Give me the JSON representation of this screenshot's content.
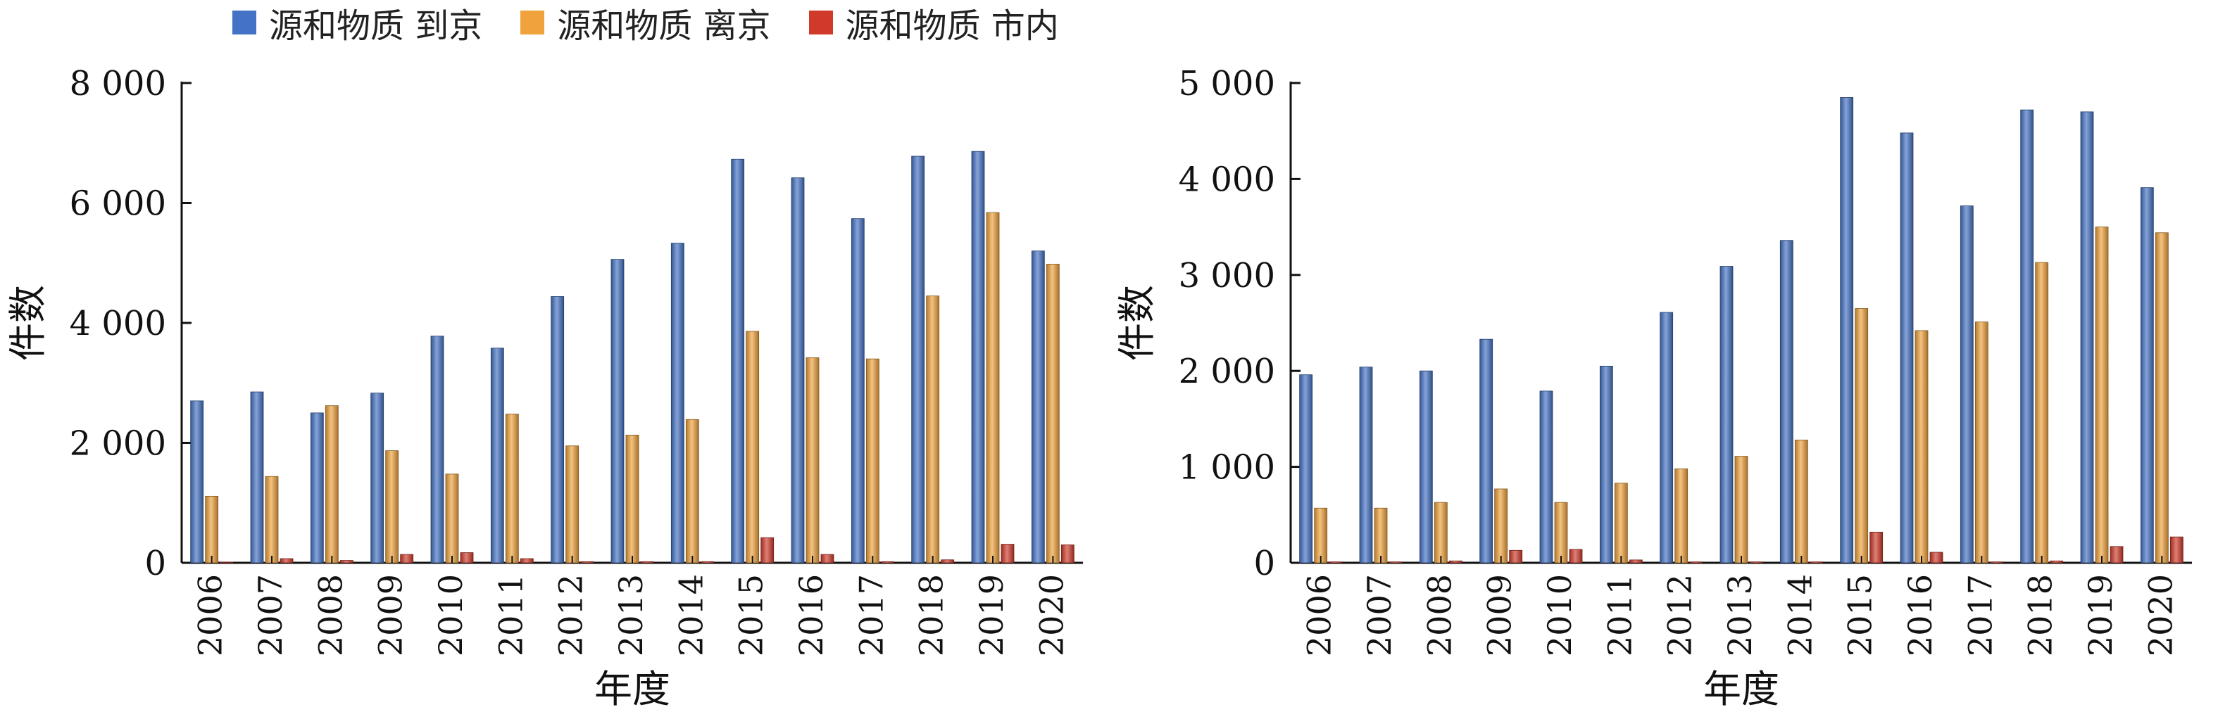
{
  "legend": [
    {
      "label": "源和物质 到京",
      "color": "#4472c4"
    },
    {
      "label": "源和物质 离京",
      "color": "#f0a23c"
    },
    {
      "label": "源和物质 市内",
      "color": "#d03a2a"
    }
  ],
  "chart_data": [
    {
      "type": "bar",
      "xlabel": "年度",
      "ylabel": "件数",
      "ylim": [
        0,
        8000
      ],
      "yticks": [
        0,
        2000,
        4000,
        6000,
        8000
      ],
      "ytick_labels": [
        "0",
        "2 000",
        "4 000",
        "6 000",
        "8 000"
      ],
      "categories": [
        "2006",
        "2007",
        "2008",
        "2009",
        "2010",
        "2011",
        "2012",
        "2013",
        "2014",
        "2015",
        "2016",
        "2017",
        "2018",
        "2019",
        "2020"
      ],
      "series": [
        {
          "name": "源和物质 到京",
          "color": "#4472c4",
          "values": [
            2700,
            2850,
            2500,
            2830,
            3780,
            3580,
            4440,
            5060,
            5330,
            6730,
            6420,
            5740,
            6780,
            6860,
            5200
          ]
        },
        {
          "name": "源和物质 离京",
          "color": "#f0a23c",
          "values": [
            1110,
            1440,
            2620,
            1870,
            1480,
            2480,
            1950,
            2130,
            2390,
            3860,
            3420,
            3400,
            4450,
            5840,
            4980
          ]
        },
        {
          "name": "源和物质 市内",
          "color": "#d03a2a",
          "values": [
            10,
            70,
            40,
            140,
            170,
            70,
            20,
            20,
            20,
            420,
            140,
            20,
            50,
            310,
            300
          ]
        }
      ],
      "grid": false
    },
    {
      "type": "bar",
      "xlabel": "年度",
      "ylabel": "件数",
      "ylim": [
        0,
        5000
      ],
      "yticks": [
        0,
        1000,
        2000,
        3000,
        4000,
        5000
      ],
      "ytick_labels": [
        "0",
        "1 000",
        "2 000",
        "3 000",
        "4 000",
        "5 000"
      ],
      "categories": [
        "2006",
        "2007",
        "2008",
        "2009",
        "2010",
        "2011",
        "2012",
        "2013",
        "2014",
        "2015",
        "2016",
        "2017",
        "2018",
        "2019",
        "2020"
      ],
      "series": [
        {
          "name": "源和物质 到京",
          "color": "#4472c4",
          "values": [
            1960,
            2040,
            2000,
            2330,
            1790,
            2050,
            2610,
            3090,
            3360,
            4850,
            4480,
            3720,
            4720,
            4700,
            3910
          ]
        },
        {
          "name": "源和物质 离京",
          "color": "#f0a23c",
          "values": [
            570,
            570,
            630,
            770,
            630,
            830,
            980,
            1110,
            1280,
            2650,
            2420,
            2510,
            3130,
            3500,
            3440
          ]
        },
        {
          "name": "源和物质 市内",
          "color": "#d03a2a",
          "values": [
            10,
            10,
            20,
            130,
            140,
            30,
            10,
            10,
            10,
            320,
            110,
            10,
            20,
            170,
            270
          ]
        }
      ],
      "grid": false
    }
  ]
}
